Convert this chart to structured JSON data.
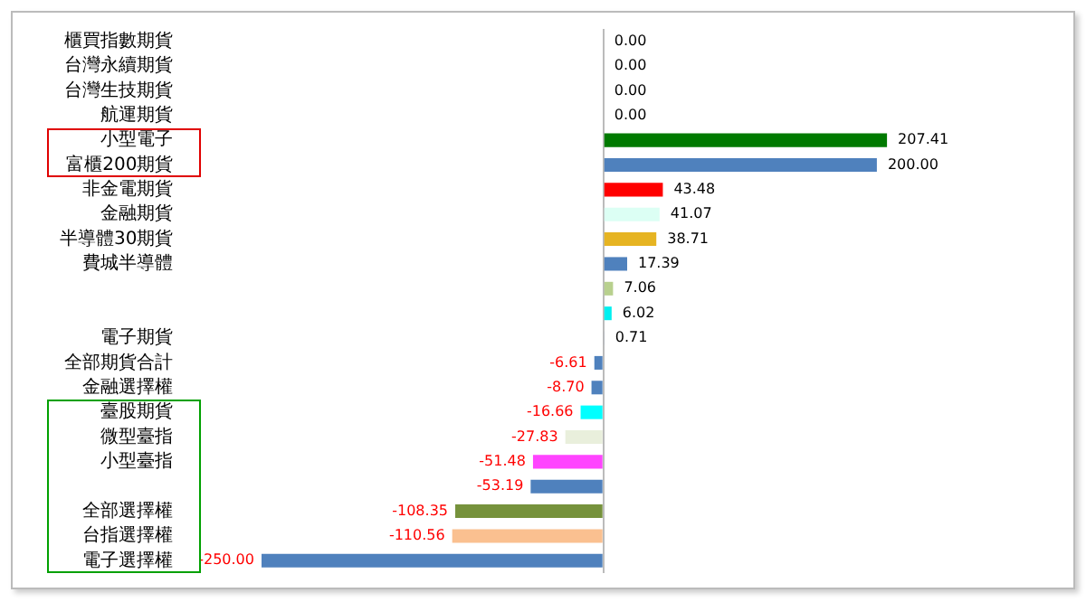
{
  "chart_data": {
    "type": "bar",
    "orientation": "horizontal",
    "categories": [
      "櫃買指數期貨",
      "台灣永續期貨",
      "台灣生技期貨",
      "航運期貨",
      "小型電子",
      "富櫃200期貨",
      "非金電期貨",
      "金融期貨",
      "半導體30期貨",
      "費城半導體",
      null,
      null,
      "電子期貨",
      "全部期貨合計",
      "金融選擇權",
      "臺股期貨",
      "微型臺指",
      "小型臺指",
      null,
      "全部選擇權",
      "台指選擇權",
      "電子選擇權"
    ],
    "values": [
      0,
      0,
      0,
      0,
      207.41,
      200,
      43.48,
      41.07,
      38.71,
      17.39,
      7.06,
      6.02,
      0.71,
      -6.61,
      -8.7,
      -16.66,
      -27.83,
      -51.48,
      -53.19,
      -108.35,
      -110.56,
      -250
    ],
    "colors": [
      "#4f81bd",
      "#4f81bd",
      "#4f81bd",
      "#4f81bd",
      "#007a00",
      "#4f81bd",
      "#ff0000",
      "#dcfff4",
      "#e6b422",
      "#4f81bd",
      "#b8d08e",
      "#00f0f0",
      "#4f81bd",
      "#4f81bd",
      "#4f81bd",
      "#00ffff",
      "#e9efdc",
      "#ff44ff",
      "#4f81bd",
      "#76923c",
      "#fac090",
      "#4f81bd"
    ],
    "value_labels": [
      "0.00",
      "0.00",
      "0.00",
      "0.00",
      "207.41",
      "200.00",
      "43.48",
      "41.07",
      "38.71",
      "17.39",
      "7.06",
      "6.02",
      "0.71",
      "-6.61",
      "-8.70",
      "-16.66",
      "-27.83",
      "-51.48",
      "-53.19",
      "-108.35",
      "-110.56",
      "-250.00"
    ],
    "grid": false,
    "legend": false
  }
}
